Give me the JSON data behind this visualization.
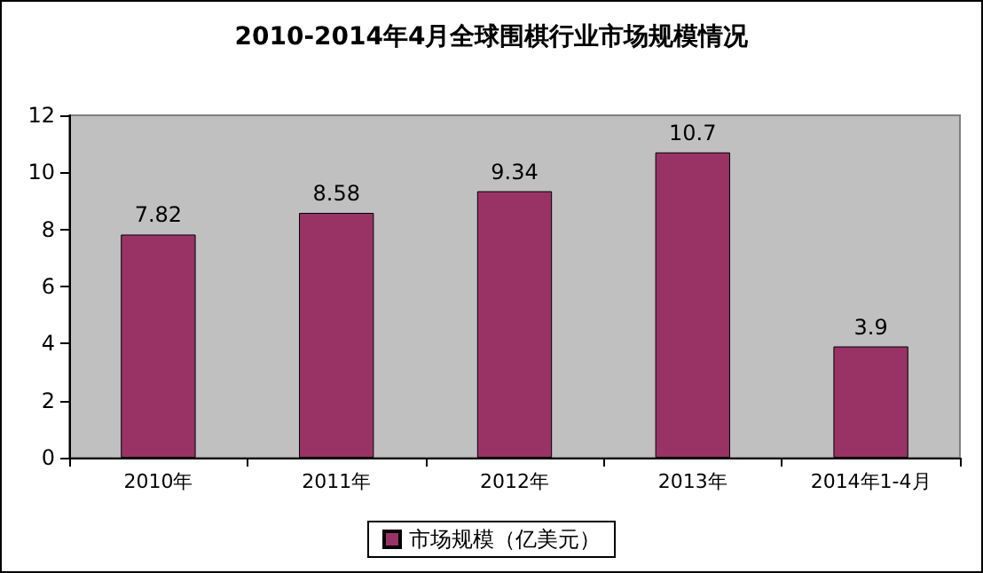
{
  "chart_data": {
    "type": "bar",
    "title": "2010-2014年4月全球围棋行业市场规模情况",
    "categories": [
      "2010年",
      "2011年",
      "2012年",
      "2013年",
      "2014年1-4月"
    ],
    "series": [
      {
        "name": "市场规模（亿美元）",
        "color": "#993366",
        "values": [
          7.82,
          8.58,
          9.34,
          10.7,
          3.9
        ]
      }
    ],
    "ylim": [
      0,
      12
    ],
    "yticks": [
      0,
      2,
      4,
      6,
      8,
      10,
      12
    ],
    "grid": false,
    "legend": "bottom",
    "data_labels": true
  }
}
